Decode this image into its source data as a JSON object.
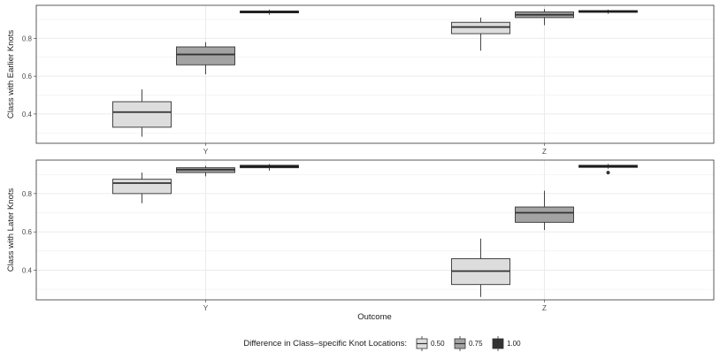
{
  "chart_data": [
    {
      "type": "boxplot",
      "panel": "top",
      "ylabel": "Class with Earlier Knots",
      "xlabel": "",
      "ylim": [
        0.245,
        0.975
      ],
      "yticks": [
        0.4,
        0.6,
        0.8
      ],
      "ytick_labels": [
        "0.4",
        "0.6",
        "0.8"
      ],
      "categories": [
        "Y",
        "Z"
      ],
      "grid": true,
      "series": [
        {
          "name": "0.50",
          "boxes": [
            {
              "category": "Y",
              "min": 0.28,
              "q1": 0.33,
              "median": 0.41,
              "q3": 0.465,
              "max": 0.53,
              "outliers": []
            },
            {
              "category": "Z",
              "min": 0.735,
              "q1": 0.825,
              "median": 0.86,
              "q3": 0.885,
              "max": 0.91,
              "outliers": []
            }
          ]
        },
        {
          "name": "0.75",
          "boxes": [
            {
              "category": "Y",
              "min": 0.61,
              "q1": 0.66,
              "median": 0.715,
              "q3": 0.755,
              "max": 0.78,
              "outliers": []
            },
            {
              "category": "Z",
              "min": 0.87,
              "q1": 0.91,
              "median": 0.925,
              "q3": 0.94,
              "max": 0.955,
              "outliers": []
            }
          ]
        },
        {
          "name": "1.00",
          "boxes": [
            {
              "category": "Y",
              "min": 0.925,
              "q1": 0.935,
              "median": 0.94,
              "q3": 0.945,
              "max": 0.952,
              "outliers": []
            },
            {
              "category": "Z",
              "min": 0.93,
              "q1": 0.939,
              "median": 0.943,
              "q3": 0.947,
              "max": 0.952,
              "outliers": []
            }
          ]
        }
      ]
    },
    {
      "type": "boxplot",
      "panel": "bottom",
      "ylabel": "Class with Later Knots",
      "xlabel": "Outcome",
      "ylim": [
        0.245,
        0.975
      ],
      "yticks": [
        0.4,
        0.6,
        0.8
      ],
      "ytick_labels": [
        "0.4",
        "0.6",
        "0.8"
      ],
      "categories": [
        "Y",
        "Z"
      ],
      "grid": true,
      "series": [
        {
          "name": "0.50",
          "boxes": [
            {
              "category": "Y",
              "min": 0.75,
              "q1": 0.8,
              "median": 0.855,
              "q3": 0.875,
              "max": 0.91,
              "outliers": []
            },
            {
              "category": "Z",
              "min": 0.26,
              "q1": 0.325,
              "median": 0.395,
              "q3": 0.46,
              "max": 0.565,
              "outliers": []
            }
          ]
        },
        {
          "name": "0.75",
          "boxes": [
            {
              "category": "Y",
              "min": 0.89,
              "q1": 0.91,
              "median": 0.925,
              "q3": 0.935,
              "max": 0.945,
              "outliers": []
            },
            {
              "category": "Z",
              "min": 0.61,
              "q1": 0.65,
              "median": 0.7,
              "q3": 0.73,
              "max": 0.815,
              "outliers": []
            }
          ]
        },
        {
          "name": "1.00",
          "boxes": [
            {
              "category": "Y",
              "min": 0.92,
              "q1": 0.935,
              "median": 0.942,
              "q3": 0.948,
              "max": 0.955,
              "outliers": []
            },
            {
              "category": "Z",
              "min": 0.93,
              "q1": 0.937,
              "median": 0.943,
              "q3": 0.948,
              "max": 0.955,
              "outliers": [
                0.91
              ]
            }
          ]
        }
      ]
    }
  ],
  "legend": {
    "title": "Difference in Class–specific Knot Locations:",
    "placement": "bottom",
    "items": [
      {
        "label": "0.50",
        "color": "#dddddd"
      },
      {
        "label": "0.75",
        "color": "#a3a3a3"
      },
      {
        "label": "1.00",
        "color": "#333333"
      }
    ]
  },
  "colors": {
    "panel_border": "#333333",
    "grid": "#ebebeb",
    "outline": "#333333"
  }
}
